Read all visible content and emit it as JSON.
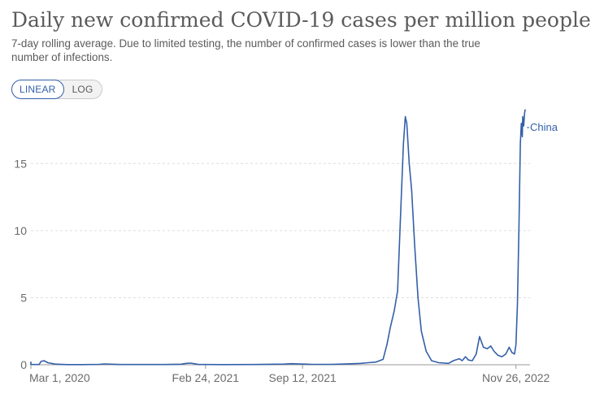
{
  "header": {
    "title": "Daily new confirmed COVID-19 cases per million people",
    "subtitle": "7-day rolling average. Due to limited testing, the number of confirmed cases is lower than the true number of infections."
  },
  "scale_toggle": {
    "linear_label": "LINEAR",
    "log_label": "LOG",
    "selected": "LINEAR"
  },
  "colors": {
    "series": "#3360a9",
    "grid": "#dddddd",
    "axis": "#999999",
    "text": "#5b5b5b",
    "accent": "#3360a9"
  },
  "chart_data": {
    "type": "line",
    "title": "Daily new confirmed COVID-19 cases per million people",
    "subtitle": "7-day rolling average. Due to limited testing, the number of confirmed cases is lower than the true number of infections.",
    "xlabel": "",
    "ylabel": "",
    "y_scale": "linear",
    "xlim": [
      "2020-03-01",
      "2022-12-25"
    ],
    "ylim": [
      0,
      19.5
    ],
    "y_ticks": [
      0,
      5,
      10,
      15
    ],
    "y_tick_labels": [
      "0",
      "5",
      "10",
      "15"
    ],
    "x_ticks": [
      "2020-03-01",
      "2021-02-24",
      "2021-09-12",
      "2022-11-26"
    ],
    "x_tick_labels": [
      "Mar 1, 2020",
      "Feb 24, 2021",
      "Sep 12, 2021",
      "Nov 26, 2022"
    ],
    "grid": "horizontal dashed",
    "legend": "end-of-line label",
    "series": [
      {
        "name": "China",
        "x": [
          "2020-01-22",
          "2020-02-01",
          "2020-02-10",
          "2020-02-18",
          "2020-02-24",
          "2020-03-01",
          "2020-03-10",
          "2020-03-18",
          "2020-03-22",
          "2020-03-28",
          "2020-04-05",
          "2020-04-20",
          "2020-05-15",
          "2020-06-15",
          "2020-07-20",
          "2020-08-01",
          "2020-09-01",
          "2020-12-01",
          "2021-01-05",
          "2021-01-15",
          "2021-01-25",
          "2021-02-10",
          "2021-04-01",
          "2021-06-01",
          "2021-08-05",
          "2021-08-20",
          "2021-10-01",
          "2021-11-10",
          "2021-12-01",
          "2021-12-25",
          "2022-01-10",
          "2022-01-25",
          "2022-02-10",
          "2022-02-25",
          "2022-03-05",
          "2022-03-12",
          "2022-03-20",
          "2022-03-27",
          "2022-04-03",
          "2022-04-08",
          "2022-04-12",
          "2022-04-15",
          "2022-04-20",
          "2022-04-25",
          "2022-05-01",
          "2022-05-08",
          "2022-05-15",
          "2022-05-25",
          "2022-06-05",
          "2022-06-20",
          "2022-07-10",
          "2022-07-20",
          "2022-08-01",
          "2022-08-07",
          "2022-08-14",
          "2022-08-20",
          "2022-08-28",
          "2022-09-05",
          "2022-09-12",
          "2022-09-20",
          "2022-09-28",
          "2022-10-05",
          "2022-10-12",
          "2022-10-20",
          "2022-10-28",
          "2022-11-05",
          "2022-11-12",
          "2022-11-18",
          "2022-11-23",
          "2022-11-26",
          "2022-11-29",
          "2022-12-02",
          "2022-12-05",
          "2022-12-07",
          "2022-12-09",
          "2022-12-10",
          "2022-12-12",
          "2022-12-14",
          "2022-12-15"
        ],
        "y": [
          0.2,
          0.15,
          0.1,
          0.05,
          0.03,
          0.02,
          0.02,
          0.02,
          0.25,
          0.3,
          0.15,
          0.05,
          0.01,
          0.01,
          0.03,
          0.06,
          0.02,
          0.02,
          0.04,
          0.1,
          0.12,
          0.02,
          0.01,
          0.02,
          0.05,
          0.08,
          0.03,
          0.03,
          0.05,
          0.08,
          0.1,
          0.15,
          0.2,
          0.4,
          1.5,
          2.8,
          4.0,
          5.5,
          12.0,
          16.5,
          18.5,
          18.0,
          15.0,
          13.0,
          9.0,
          5.0,
          2.5,
          1.0,
          0.3,
          0.15,
          0.1,
          0.3,
          0.45,
          0.3,
          0.6,
          0.35,
          0.3,
          0.8,
          2.1,
          1.3,
          1.2,
          1.4,
          1.0,
          0.7,
          0.6,
          0.8,
          1.3,
          0.9,
          0.8,
          1.5,
          4.5,
          10.0,
          16.5,
          18.0,
          17.0,
          18.5,
          17.8,
          18.8,
          19.0
        ]
      }
    ]
  }
}
